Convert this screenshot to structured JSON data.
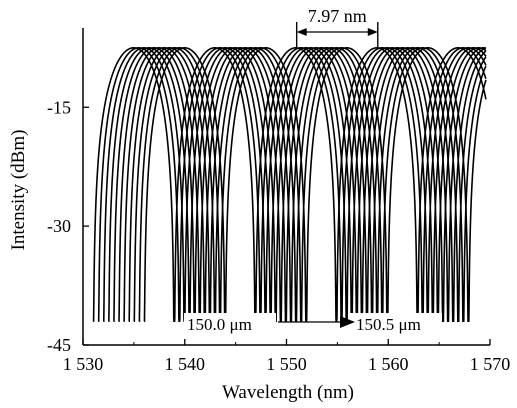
{
  "chart_data": {
    "type": "line",
    "title": "",
    "xlabel": "Wavelength (nm)",
    "ylabel": "Intensity (dBm)",
    "xlim": [
      1530,
      1570
    ],
    "ylim": [
      -45,
      -5
    ],
    "xticks": [
      1530,
      1540,
      1550,
      1560,
      1570
    ],
    "xtick_labels": [
      "1 530",
      "1 540",
      "1 550",
      "1 560",
      "1 570"
    ],
    "yticks": [
      -15,
      -30,
      -45
    ],
    "ytick_labels": [
      "-15",
      "-30",
      "-45"
    ],
    "grid": false,
    "legend": "none",
    "line_color": "#000000",
    "fsr_nm": 7.97,
    "peak_dbm": -7.5,
    "dip_dbm": -42,
    "series": [
      {
        "dips": [
          1531.0,
          1538.97,
          1546.94,
          1554.91,
          1562.88
        ]
      },
      {
        "dips": [
          1531.5,
          1539.47,
          1547.44,
          1555.41,
          1563.38
        ]
      },
      {
        "dips": [
          1532.0,
          1539.97,
          1547.94,
          1555.91,
          1563.88
        ]
      },
      {
        "dips": [
          1532.5,
          1540.47,
          1548.44,
          1556.41,
          1564.38
        ]
      },
      {
        "dips": [
          1533.0,
          1540.97,
          1548.94,
          1556.91,
          1564.88
        ]
      },
      {
        "dips": [
          1533.5,
          1541.47,
          1549.44,
          1557.41,
          1565.38
        ]
      },
      {
        "dips": [
          1534.0,
          1541.97,
          1549.94,
          1557.91,
          1565.88
        ]
      },
      {
        "dips": [
          1534.5,
          1542.47,
          1550.44,
          1558.41,
          1566.38
        ]
      },
      {
        "dips": [
          1535.0,
          1542.97,
          1550.94,
          1558.91,
          1566.88
        ]
      },
      {
        "dips": [
          1535.5,
          1543.47,
          1551.44,
          1559.41,
          1567.38
        ]
      },
      {
        "dips": [
          1536.0,
          1543.97,
          1551.94,
          1559.91,
          1567.88
        ]
      }
    ],
    "annotations": {
      "fsr_label": "7.97 nm",
      "fsr_from": 1551.0,
      "fsr_to": 1558.97,
      "start_label": "150.0 μm",
      "end_label": "150.5 μm"
    }
  }
}
